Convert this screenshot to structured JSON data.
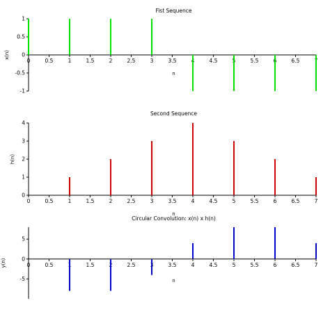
{
  "chart_data": [
    {
      "type": "stem",
      "title": "Fist Sequence",
      "xlabel": "n",
      "ylabel": "x(n)",
      "x": [
        0,
        1,
        2,
        3,
        4,
        5,
        6,
        7
      ],
      "values": [
        1,
        1,
        1,
        1,
        -1,
        -1,
        -1,
        -1
      ],
      "xlim": [
        0,
        7
      ],
      "ylim": [
        -1,
        1
      ],
      "xticks": [
        "0",
        "0.5",
        "1",
        "1.5",
        "2",
        "2.5",
        "3",
        "3.5",
        "4",
        "4.5",
        "5",
        "5.5",
        "6",
        "6.5",
        "7"
      ],
      "yticks": [
        "-1",
        "-0.5",
        "0",
        "0.5",
        "1"
      ],
      "color": "#00e000",
      "grid": false
    },
    {
      "type": "stem",
      "title": "Second Sequence",
      "xlabel": "n",
      "ylabel": "h(n)",
      "x": [
        0,
        1,
        2,
        3,
        4,
        5,
        6,
        7
      ],
      "values": [
        0,
        1,
        2,
        3,
        4,
        3,
        2,
        1
      ],
      "xlim": [
        0,
        7
      ],
      "ylim": [
        0,
        4
      ],
      "xticks": [
        "0",
        "0.5",
        "1",
        "1.5",
        "2",
        "2.5",
        "3",
        "3.5",
        "4",
        "4.5",
        "5",
        "5.5",
        "6",
        "6.5",
        "7"
      ],
      "yticks": [
        "0",
        "1",
        "2",
        "3",
        "4"
      ],
      "color": "#cc0000",
      "grid": false
    },
    {
      "type": "stem",
      "title": "Circular Convolution: x(n) x h(n)",
      "xlabel": "n",
      "ylabel": "y(n)",
      "x": [
        0,
        1,
        2,
        3,
        4,
        5,
        6,
        7
      ],
      "values": [
        0,
        -8,
        -8,
        -4,
        4,
        8,
        8,
        4
      ],
      "xlim": [
        0,
        7
      ],
      "ylim": [
        -10,
        8
      ],
      "xticks": [
        "0",
        "0.5",
        "1",
        "1.5",
        "2",
        "2.5",
        "3",
        "3.5",
        "4",
        "4.5",
        "5",
        "5.5",
        "6",
        "6.5",
        "7"
      ],
      "yticks": [
        "-5",
        "0",
        "5"
      ],
      "ytick_values": [
        -5,
        0,
        5
      ],
      "color": "#0000cc",
      "grid": false
    }
  ]
}
